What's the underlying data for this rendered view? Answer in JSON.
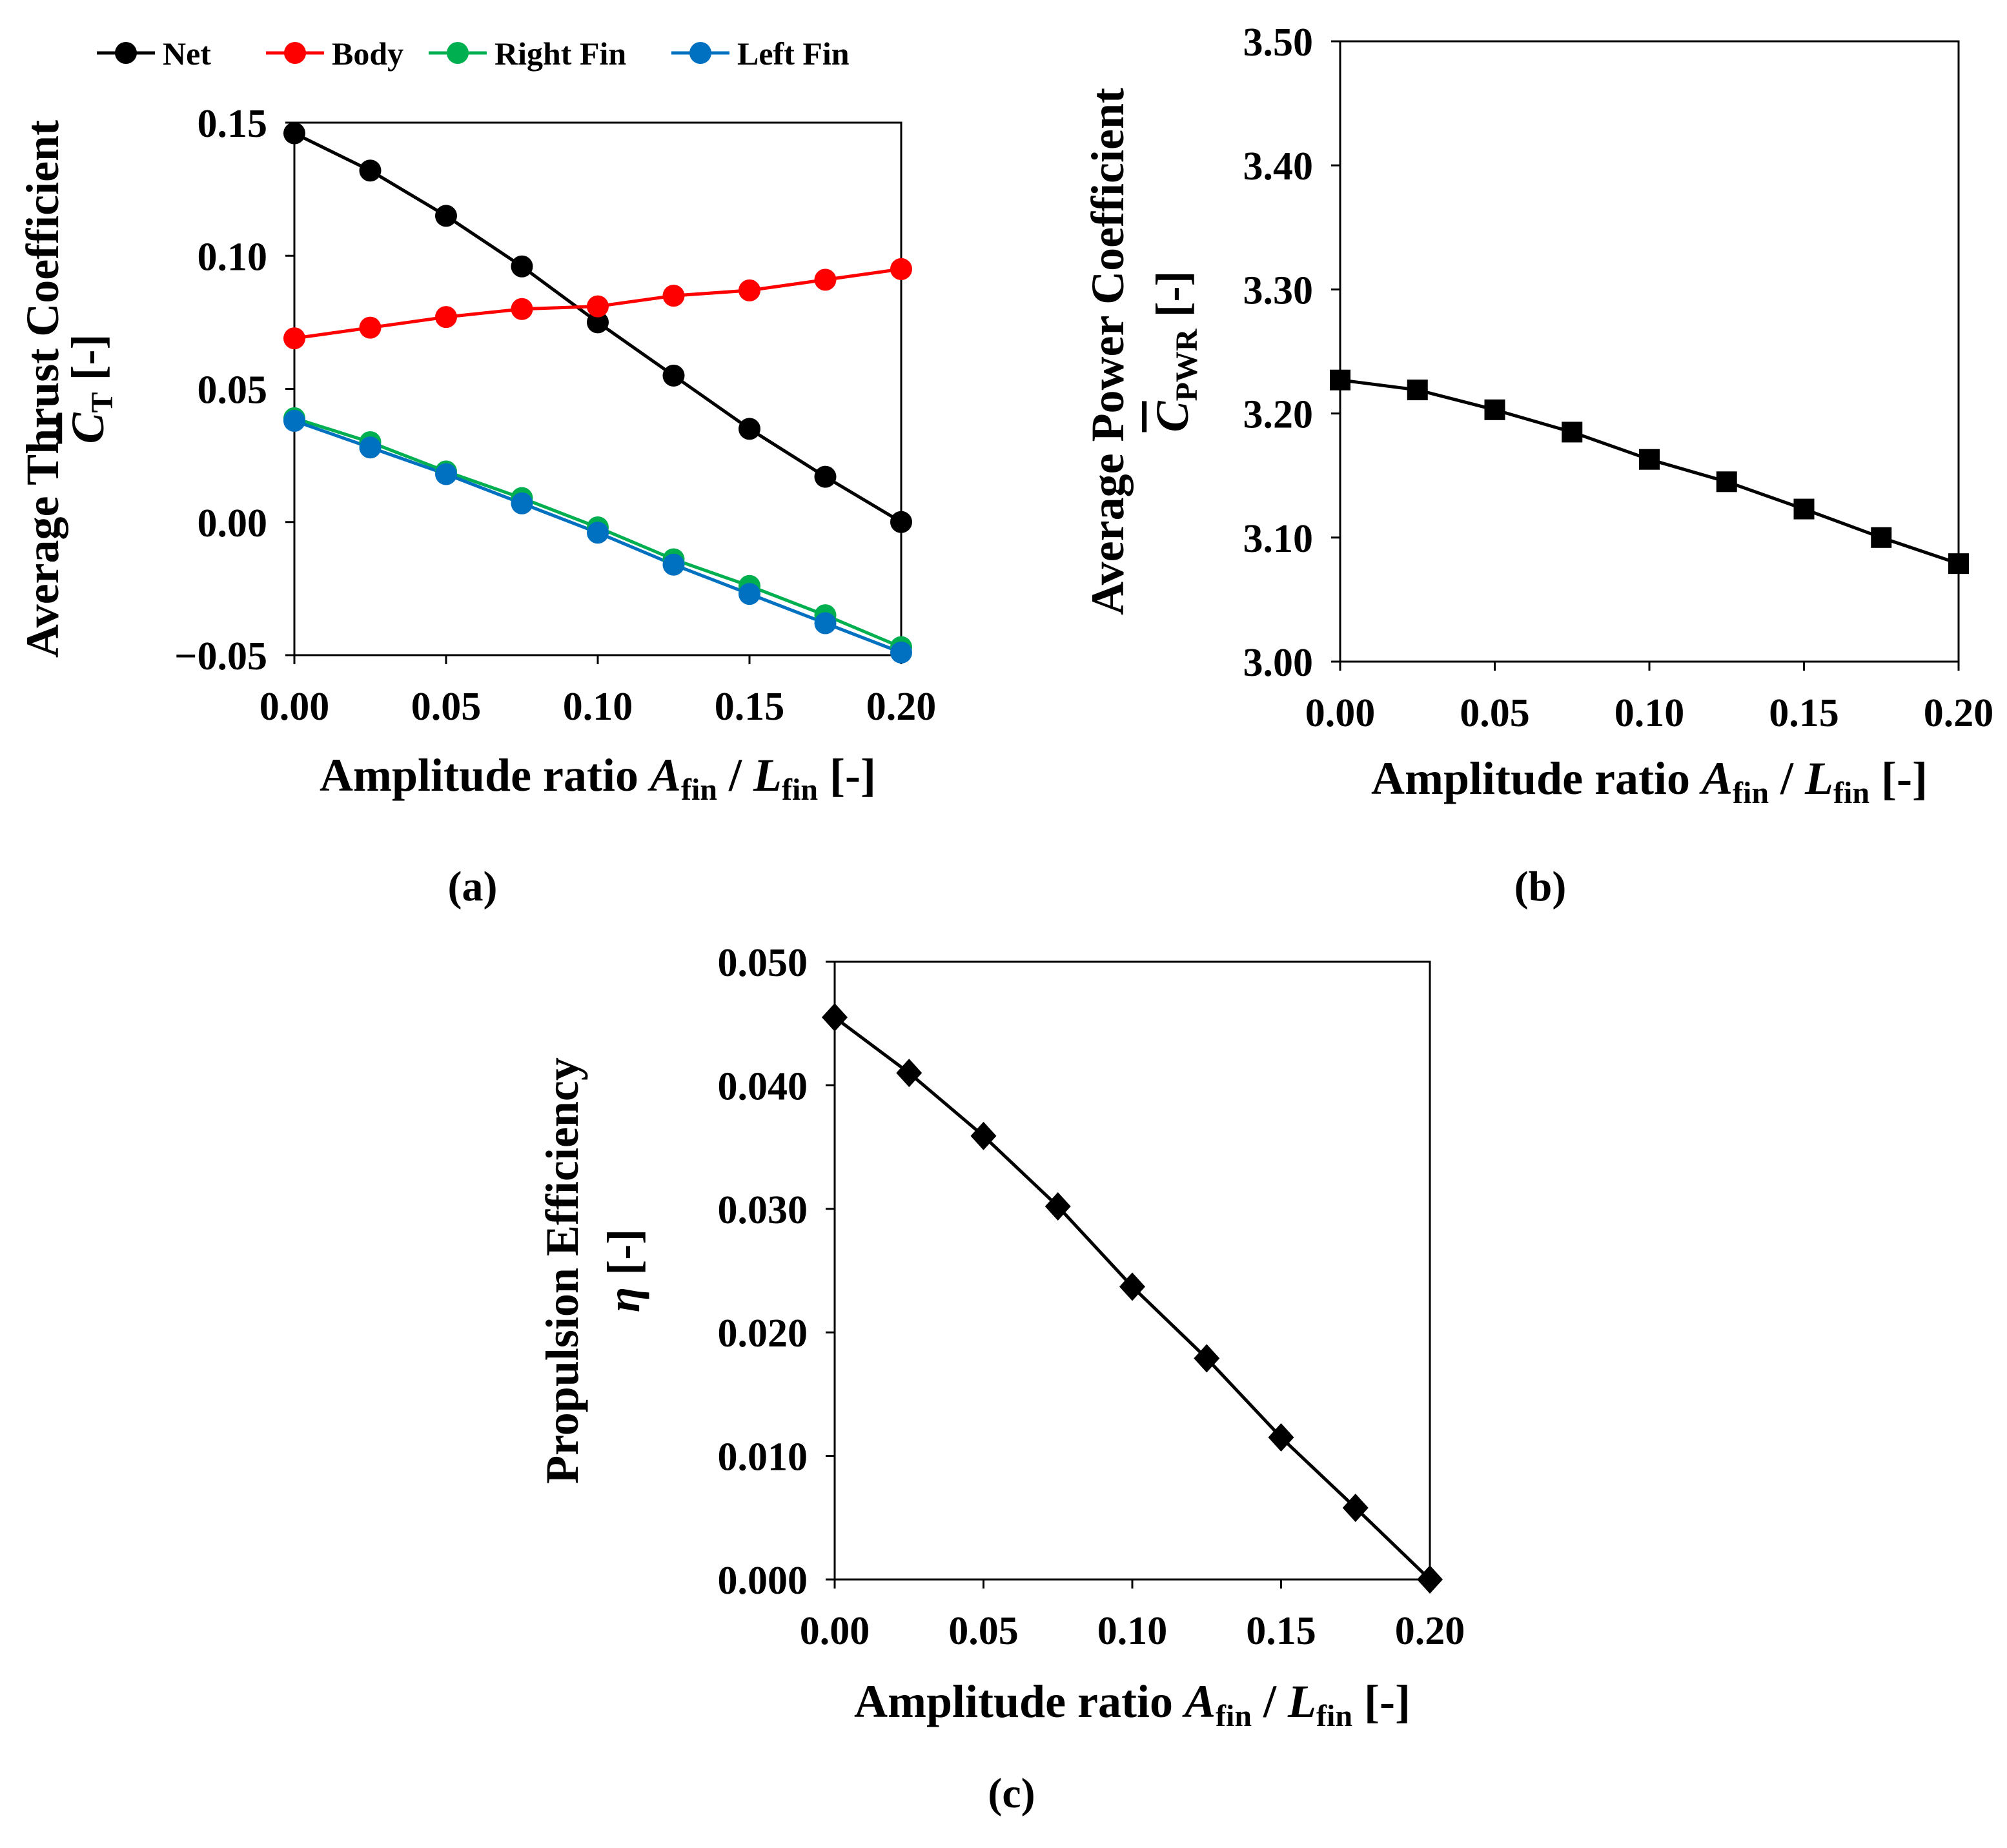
{
  "chart_data": [
    {
      "id": "a",
      "type": "line",
      "panel_label": "(a)",
      "title": "",
      "x": [
        0.0,
        0.025,
        0.05,
        0.075,
        0.1,
        0.125,
        0.15,
        0.175,
        0.2
      ],
      "xlim": [
        0.0,
        0.2
      ],
      "ylim": [
        -0.05,
        0.15
      ],
      "xticks": [
        "0.00",
        "0.05",
        "0.10",
        "0.15",
        "0.20"
      ],
      "yticks": [
        "−0.05",
        "0.00",
        "0.05",
        "0.10",
        "0.15"
      ],
      "xlabel": {
        "main": "Amplitude ratio ",
        "a_sym": "A",
        "a_sub": "fin",
        "sep": " / ",
        "l_sym": "L",
        "l_sub": "fin",
        "unit": " [-]"
      },
      "ylabel": {
        "line1": "Average Thrust Coefficient",
        "sym": "C",
        "sub": "T",
        "unit": " [-]"
      },
      "legend_position": "top",
      "series": [
        {
          "name": "Net",
          "color": "#000000",
          "marker": "circle",
          "values": [
            0.146,
            0.132,
            0.115,
            0.096,
            0.075,
            0.055,
            0.035,
            0.017,
            0.0
          ]
        },
        {
          "name": "Body",
          "color": "#ff0000",
          "marker": "circle",
          "values": [
            0.069,
            0.073,
            0.077,
            0.08,
            0.081,
            0.085,
            0.087,
            0.091,
            0.095
          ]
        },
        {
          "name": "Right Fin",
          "color": "#00b050",
          "marker": "circle",
          "values": [
            0.039,
            0.03,
            0.019,
            0.009,
            -0.002,
            -0.014,
            -0.024,
            -0.035,
            -0.047
          ]
        },
        {
          "name": "Left Fin",
          "color": "#0070c0",
          "marker": "circle",
          "values": [
            0.038,
            0.028,
            0.018,
            0.007,
            -0.004,
            -0.016,
            -0.027,
            -0.038,
            -0.049
          ]
        }
      ]
    },
    {
      "id": "b",
      "type": "line",
      "panel_label": "(b)",
      "title": "",
      "x": [
        0.0,
        0.025,
        0.05,
        0.075,
        0.1,
        0.125,
        0.15,
        0.175,
        0.2
      ],
      "xlim": [
        0.0,
        0.2
      ],
      "ylim": [
        3.0,
        3.5
      ],
      "xticks": [
        "0.00",
        "0.05",
        "0.10",
        "0.15",
        "0.20"
      ],
      "yticks": [
        "3.00",
        "3.10",
        "3.20",
        "3.30",
        "3.40",
        "3.50"
      ],
      "xlabel": {
        "main": "Amplitude ratio ",
        "a_sym": "A",
        "a_sub": "fin",
        "sep": " / ",
        "l_sym": "L",
        "l_sub": "fin",
        "unit": " [-]"
      },
      "ylabel": {
        "line1": "Average Power Coefficient",
        "sym": "C",
        "sub": "PWR",
        "unit": " [-]"
      },
      "series": [
        {
          "name": "Power",
          "color": "#000000",
          "marker": "square",
          "values": [
            3.227,
            3.219,
            3.203,
            3.185,
            3.163,
            3.145,
            3.123,
            3.1,
            3.079
          ]
        }
      ]
    },
    {
      "id": "c",
      "type": "line",
      "panel_label": "(c)",
      "title": "",
      "x": [
        0.0,
        0.025,
        0.05,
        0.075,
        0.1,
        0.125,
        0.15,
        0.175,
        0.2
      ],
      "xlim": [
        0.0,
        0.2
      ],
      "ylim": [
        0.0,
        0.05
      ],
      "xticks": [
        "0.00",
        "0.05",
        "0.10",
        "0.15",
        "0.20"
      ],
      "yticks": [
        "0.000",
        "0.010",
        "0.020",
        "0.030",
        "0.040",
        "0.050"
      ],
      "xlabel": {
        "main": "Amplitude ratio ",
        "a_sym": "A",
        "a_sub": "fin",
        "sep": " / ",
        "l_sym": "L",
        "l_sub": "fin",
        "unit": " [-]"
      },
      "ylabel": {
        "line1": "Propulsion Efficiency",
        "sym": "η",
        "sub": "",
        "unit": " [-]"
      },
      "series": [
        {
          "name": "Efficiency",
          "color": "#000000",
          "marker": "diamond",
          "values": [
            0.0455,
            0.041,
            0.0359,
            0.0302,
            0.0237,
            0.0179,
            0.0115,
            0.0058,
            0.0
          ]
        }
      ]
    }
  ]
}
